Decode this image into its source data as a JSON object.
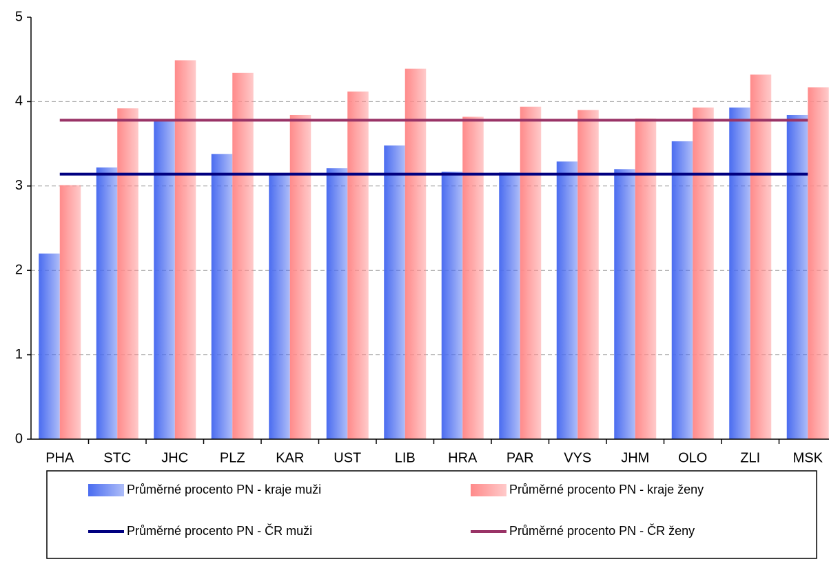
{
  "chart_data": {
    "type": "bar",
    "categories": [
      "PHA",
      "STC",
      "JHC",
      "PLZ",
      "KAR",
      "UST",
      "LIB",
      "HRA",
      "PAR",
      "VYS",
      "JHM",
      "OLO",
      "ZLI",
      "MSK"
    ],
    "series": [
      {
        "name": "Průměrné procento PN - kraje muži",
        "type": "bar",
        "color": "#4a6cf0",
        "values": [
          2.2,
          3.22,
          3.78,
          3.38,
          3.15,
          3.21,
          3.48,
          3.17,
          3.16,
          3.29,
          3.2,
          3.53,
          3.93,
          3.84
        ]
      },
      {
        "name": "Průměrné procento PN - kraje ženy",
        "type": "bar",
        "color": "#ff8a8a",
        "values": [
          3.01,
          3.92,
          4.49,
          4.34,
          3.84,
          4.12,
          4.39,
          3.82,
          3.94,
          3.9,
          3.8,
          3.93,
          4.32,
          4.17
        ]
      },
      {
        "name": "Průměrné procento PN - ČR muži",
        "type": "line",
        "color": "#000080",
        "values": [
          3.14,
          3.14,
          3.14,
          3.14,
          3.14,
          3.14,
          3.14,
          3.14,
          3.14,
          3.14,
          3.14,
          3.14,
          3.14,
          3.14
        ]
      },
      {
        "name": "Průměrné procento PN - ČR ženy",
        "type": "line",
        "color": "#993366",
        "values": [
          3.78,
          3.78,
          3.78,
          3.78,
          3.78,
          3.78,
          3.78,
          3.78,
          3.78,
          3.78,
          3.78,
          3.78,
          3.78,
          3.78
        ]
      }
    ],
    "ylim": [
      0,
      5
    ],
    "yticks": [
      0,
      1,
      2,
      3,
      4,
      5
    ],
    "grid": true,
    "legend": "bottom"
  }
}
